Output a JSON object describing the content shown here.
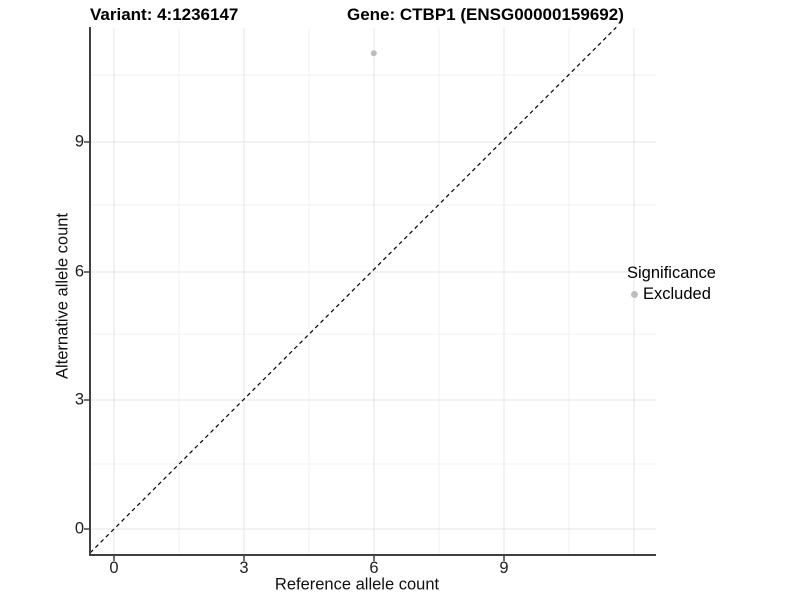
{
  "title": {
    "variant_label": "Variant: 4:1236147",
    "gene_label": "Gene: CTBP1 (ENSG00000159692)"
  },
  "axes": {
    "x_title": "Reference allele count",
    "y_title": "Alternative allele count",
    "x_tick_labels": [
      "0",
      "3",
      "6",
      "9"
    ],
    "y_tick_labels": [
      "0",
      "3",
      "6",
      "9"
    ]
  },
  "legend": {
    "title": "Significance",
    "items": [
      {
        "label": "Excluded",
        "color": "#bdbdbd",
        "marker": "dot"
      }
    ]
  },
  "colors": {
    "axis_line": "#404040",
    "grid_major": "#e4e4e4",
    "grid_minor": "#f1f1f1",
    "identity_line": "#000000",
    "point": "#bdbdbd"
  },
  "chart_data": {
    "type": "scatter",
    "title": "Variant: 4:1236147 | Gene: CTBP1 (ENSG00000159692)",
    "xlabel": "Reference allele count",
    "ylabel": "Alternative allele count",
    "xlim": [
      -0.55,
      12.5
    ],
    "ylim": [
      -0.6,
      11.6
    ],
    "x_ticks": [
      0,
      3,
      6,
      9
    ],
    "y_ticks": [
      0,
      3,
      6,
      9
    ],
    "grid": "major and minor, very light gray on white panel",
    "legend_position": "right-middle",
    "series": [
      {
        "name": "Excluded",
        "color": "#bdbdbd",
        "marker_radius_px": 3,
        "points": [
          {
            "x": 6,
            "y": 11
          }
        ]
      }
    ],
    "reference_line": {
      "type": "identity y=x",
      "style": "dashed",
      "color": "#000000",
      "from": [
        -0.55,
        -0.55
      ],
      "to": [
        11.6,
        11.6
      ]
    }
  }
}
